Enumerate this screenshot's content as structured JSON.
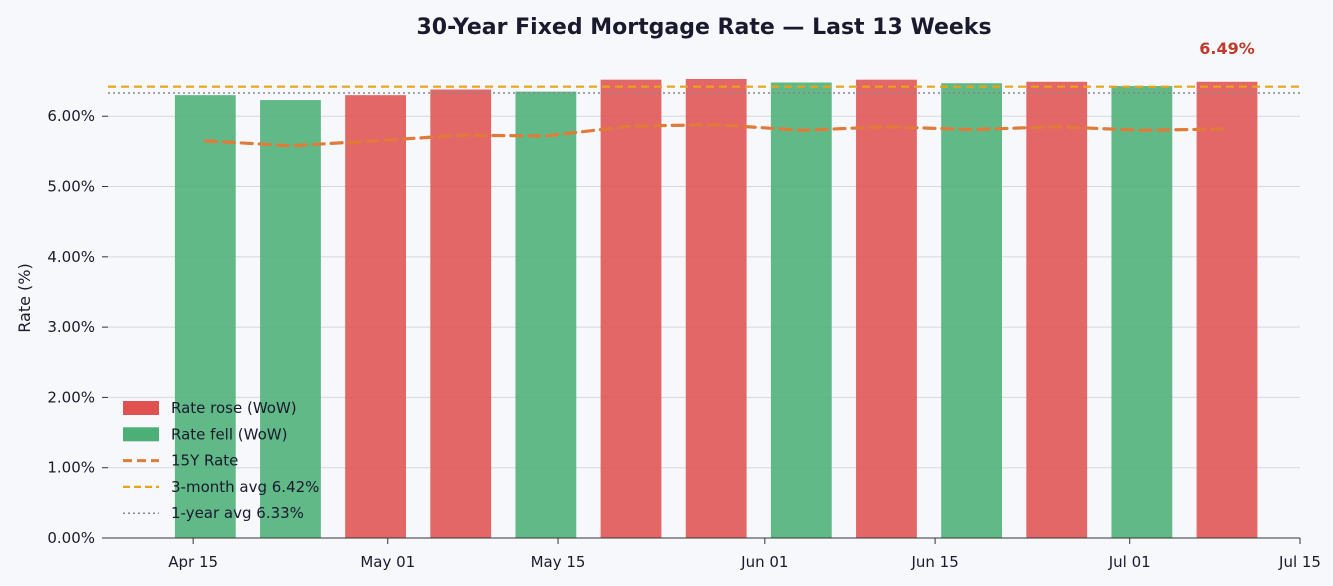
{
  "chart_data": {
    "type": "bar",
    "title": "30-Year Fixed Mortgage Rate — Last 13 Weeks",
    "ylabel": "Rate (%)",
    "xlabel": "",
    "ylim": [
      0,
      6.8
    ],
    "yticks": [
      0,
      1,
      2,
      3,
      4,
      5,
      6
    ],
    "ytick_labels": [
      "0.00%",
      "1.00%",
      "2.00%",
      "3.00%",
      "4.00%",
      "5.00%",
      "6.00%"
    ],
    "x_range": [
      "2024-04-08",
      "2024-07-15"
    ],
    "xtick_dates": [
      "2024-04-15",
      "2024-05-01",
      "2024-05-15",
      "2024-06-01",
      "2024-06-15",
      "2024-07-01",
      "2024-07-15"
    ],
    "xtick_labels": [
      "Apr 15",
      "May 01",
      "May 15",
      "Jun 01",
      "Jun 15",
      "Jul 01",
      "Jul 15"
    ],
    "grid": true,
    "dates": [
      "2024-04-16",
      "2024-04-23",
      "2024-04-30",
      "2024-05-07",
      "2024-05-14",
      "2024-05-21",
      "2024-05-28",
      "2024-06-04",
      "2024-06-11",
      "2024-06-18",
      "2024-06-25",
      "2024-07-02",
      "2024-07-09"
    ],
    "series": [
      {
        "name": "30Y Rate",
        "values": [
          6.3,
          6.23,
          6.3,
          6.38,
          6.35,
          6.52,
          6.53,
          6.48,
          6.52,
          6.47,
          6.49,
          6.43,
          6.49
        ],
        "direction": [
          "fell",
          "fell",
          "rose",
          "rose",
          "fell",
          "rose",
          "rose",
          "fell",
          "rose",
          "fell",
          "rose",
          "fell",
          "rose"
        ]
      },
      {
        "name": "15Y Rate",
        "values": [
          5.65,
          5.58,
          5.65,
          5.73,
          5.72,
          5.86,
          5.88,
          5.8,
          5.85,
          5.81,
          5.85,
          5.8,
          5.82
        ]
      }
    ],
    "reference_lines": [
      {
        "name": "3-month avg",
        "value": 6.42
      },
      {
        "name": "1-year avg",
        "value": 6.33
      }
    ],
    "annotation": "6.49%",
    "legend": {
      "placement": "lower-left",
      "entries": [
        {
          "label": "Rate rose (WoW)",
          "kind": "bar",
          "color": "#e05252"
        },
        {
          "label": "Rate fell (WoW)",
          "kind": "bar",
          "color": "#4caf78"
        },
        {
          "label": "15Y Rate",
          "kind": "dashed-line",
          "color": "#e07b39"
        },
        {
          "label": "3-month avg  6.42%",
          "kind": "dashed-line",
          "color": "#e8a317"
        },
        {
          "label": "1-year avg  6.33%",
          "kind": "dotted-line",
          "color": "#888888"
        }
      ]
    },
    "colors": {
      "rose": "#e05252",
      "fell": "#4caf78",
      "line15": "#e07b39",
      "avg3m": "#e8a317",
      "avg1y": "#888888",
      "annotation": "#c0392b",
      "grid": "#d5d8dd",
      "text": "#1a1a2e",
      "background": "#f6f8fb"
    }
  }
}
